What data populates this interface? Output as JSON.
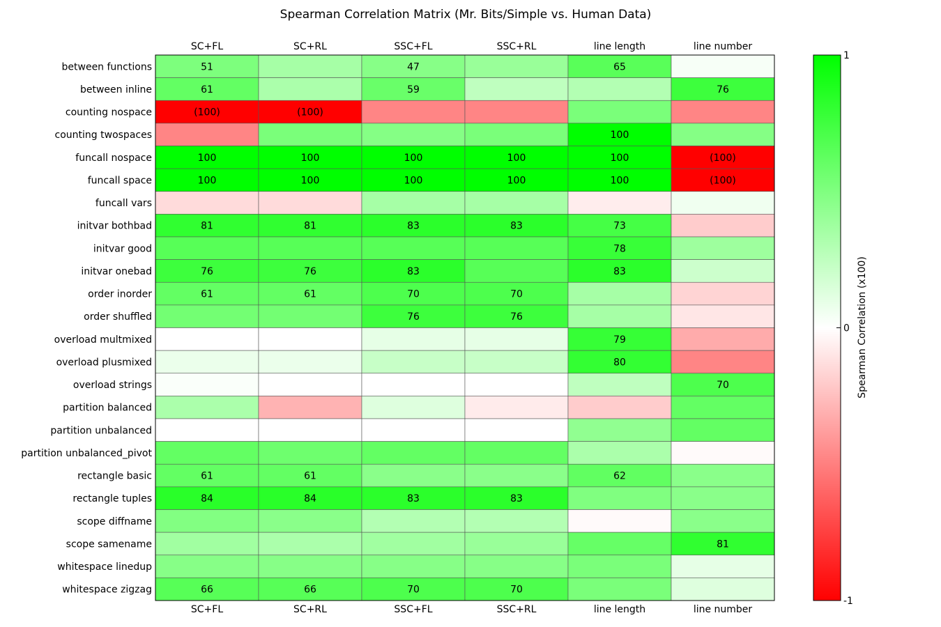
{
  "chart_data": {
    "type": "heatmap",
    "title": "Spearman Correlation Matrix (Mr. Bits/Simple vs. Human Data)",
    "columns": [
      "SC+FL",
      "SC+RL",
      "SSC+FL",
      "SSC+RL",
      "line length",
      "line number"
    ],
    "rows": [
      "between functions",
      "between inline",
      "counting nospace",
      "counting twospaces",
      "funcall nospace",
      "funcall space",
      "funcall vars",
      "initvar bothbad",
      "initvar good",
      "initvar onebad",
      "order inorder",
      "order shuffled",
      "overload multmixed",
      "overload plusmixed",
      "overload strings",
      "partition balanced",
      "partition unbalanced",
      "partition unbalanced_pivot",
      "rectangle basic",
      "rectangle tuples",
      "scope diffname",
      "scope samename",
      "whitespace linedup",
      "whitespace zigzag"
    ],
    "values": [
      [
        0.51,
        0.35,
        0.47,
        0.4,
        0.65,
        0.03
      ],
      [
        0.61,
        0.33,
        0.59,
        0.25,
        0.3,
        0.76
      ],
      [
        -1.0,
        -1.0,
        -0.48,
        -0.48,
        0.52,
        -0.48
      ],
      [
        -0.48,
        0.52,
        0.48,
        0.52,
        1.0,
        0.48
      ],
      [
        1.0,
        1.0,
        1.0,
        1.0,
        1.0,
        -1.0
      ],
      [
        1.0,
        1.0,
        1.0,
        1.0,
        1.0,
        -1.0
      ],
      [
        -0.14,
        -0.14,
        0.35,
        0.35,
        -0.07,
        0.06
      ],
      [
        0.81,
        0.81,
        0.83,
        0.83,
        0.73,
        -0.2
      ],
      [
        0.66,
        0.66,
        0.66,
        0.66,
        0.78,
        0.38
      ],
      [
        0.76,
        0.76,
        0.83,
        0.66,
        0.83,
        0.2
      ],
      [
        0.61,
        0.61,
        0.7,
        0.7,
        0.35,
        -0.17
      ],
      [
        0.55,
        0.55,
        0.76,
        0.76,
        0.35,
        -0.1
      ],
      [
        0.0,
        0.0,
        0.1,
        0.1,
        0.79,
        -0.33
      ],
      [
        0.08,
        0.08,
        0.22,
        0.22,
        0.8,
        -0.48
      ],
      [
        0.02,
        0.0,
        0.0,
        0.0,
        0.25,
        0.7
      ],
      [
        0.33,
        -0.3,
        0.13,
        -0.08,
        -0.2,
        0.61
      ],
      [
        0.0,
        0.0,
        0.0,
        0.0,
        0.43,
        0.61
      ],
      [
        0.61,
        0.57,
        0.61,
        0.61,
        0.33,
        -0.02
      ],
      [
        0.61,
        0.61,
        0.46,
        0.46,
        0.62,
        0.46
      ],
      [
        0.84,
        0.84,
        0.83,
        0.83,
        0.5,
        0.46
      ],
      [
        0.49,
        0.46,
        0.3,
        0.3,
        -0.02,
        0.46
      ],
      [
        0.37,
        0.33,
        0.37,
        0.4,
        0.6,
        0.81
      ],
      [
        0.47,
        0.47,
        0.47,
        0.47,
        0.52,
        0.1
      ],
      [
        0.66,
        0.66,
        0.7,
        0.7,
        0.52,
        0.13
      ]
    ],
    "cell_labels": [
      [
        "51",
        "",
        "47",
        "",
        "65",
        ""
      ],
      [
        "61",
        "",
        "59",
        "",
        "",
        "76"
      ],
      [
        "(100)",
        "(100)",
        "",
        "",
        "",
        ""
      ],
      [
        "",
        "",
        "",
        "",
        "100",
        ""
      ],
      [
        "100",
        "100",
        "100",
        "100",
        "100",
        "(100)"
      ],
      [
        "100",
        "100",
        "100",
        "100",
        "100",
        "(100)"
      ],
      [
        "",
        "",
        "",
        "",
        "",
        ""
      ],
      [
        "81",
        "81",
        "83",
        "83",
        "73",
        ""
      ],
      [
        "",
        "",
        "",
        "",
        "78",
        ""
      ],
      [
        "76",
        "76",
        "83",
        "",
        "83",
        ""
      ],
      [
        "61",
        "61",
        "70",
        "70",
        "",
        ""
      ],
      [
        "",
        "",
        "76",
        "76",
        "",
        ""
      ],
      [
        "",
        "",
        "",
        "",
        "79",
        ""
      ],
      [
        "",
        "",
        "",
        "",
        "80",
        ""
      ],
      [
        "",
        "",
        "",
        "",
        "",
        "70"
      ],
      [
        "",
        "",
        "",
        "",
        "",
        ""
      ],
      [
        "",
        "",
        "",
        "",
        "",
        ""
      ],
      [
        "",
        "",
        "",
        "",
        "",
        ""
      ],
      [
        "61",
        "61",
        "",
        "",
        "62",
        ""
      ],
      [
        "84",
        "84",
        "83",
        "83",
        "",
        ""
      ],
      [
        "",
        "",
        "",
        "",
        "",
        ""
      ],
      [
        "",
        "",
        "",
        "",
        "",
        "81"
      ],
      [
        "",
        "",
        "",
        "",
        "",
        ""
      ],
      [
        "66",
        "66",
        "70",
        "70",
        "",
        ""
      ]
    ],
    "colorbar": {
      "label": "Spearman Correlation (x100)",
      "ticks": [
        "1",
        "0",
        "-1"
      ],
      "range": [
        -1,
        1
      ],
      "colors": {
        "low": "#ff0000",
        "mid": "#ffffff",
        "high": "#00ff00"
      }
    }
  }
}
